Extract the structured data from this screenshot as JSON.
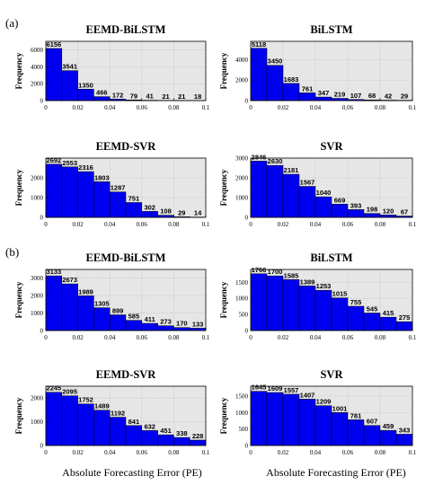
{
  "figure": {
    "section_labels": [
      "(a)",
      "(b)"
    ],
    "xlabel": "Absolute Forecasting Error (PE)"
  },
  "colors": {
    "bar": "#0000f0",
    "plot_bg": "#e6e6e6",
    "grid": "#bdbdbd"
  },
  "chart_data": [
    {
      "type": "bar",
      "section": "(a)",
      "title": "EEMD-BiLSTM",
      "ylabel": "Frequency",
      "xlim": [
        0,
        0.1
      ],
      "ylim": [
        0,
        7000
      ],
      "x_ticks": [
        "0",
        "0.02",
        "0.04",
        "0.06",
        "0.08",
        "0.1"
      ],
      "y_ticks": [
        "0",
        "2000",
        "4000",
        "6000"
      ],
      "y_tick_values": [
        0,
        2000,
        4000,
        6000
      ],
      "values": [
        6156,
        3541,
        1350,
        466,
        172,
        79,
        41,
        21,
        21,
        18
      ],
      "labels": [
        "6156",
        "3541",
        "1350",
        "466",
        "172",
        "79",
        "41",
        "21",
        "21",
        "18"
      ],
      "bin_width": 0.01,
      "grid": true
    },
    {
      "type": "bar",
      "section": "(a)",
      "title": "BiLSTM",
      "ylabel": "Frequency",
      "xlim": [
        0,
        0.1
      ],
      "ylim": [
        0,
        5800
      ],
      "x_ticks": [
        "0",
        "0.02",
        "0.04",
        "0.06",
        "0.08",
        "0.1"
      ],
      "y_ticks": [
        "0",
        "2000",
        "4000"
      ],
      "y_tick_values": [
        0,
        2000,
        4000
      ],
      "values": [
        5118,
        3450,
        1683,
        761,
        347,
        219,
        107,
        68,
        42,
        29
      ],
      "labels": [
        "5118",
        "3450",
        "1683",
        "761",
        "347",
        "219",
        "107",
        "68",
        "42",
        "29"
      ],
      "bin_width": 0.01,
      "grid": true
    },
    {
      "type": "bar",
      "section": "(a)",
      "title": "EEMD-SVR",
      "ylabel": "Frequency",
      "xlim": [
        0,
        0.1
      ],
      "ylim": [
        0,
        3000
      ],
      "x_ticks": [
        "0",
        "0.02",
        "0.04",
        "0.06",
        "0.08",
        "0.1"
      ],
      "y_ticks": [
        "0",
        "1000",
        "2000"
      ],
      "y_tick_values": [
        0,
        1000,
        2000
      ],
      "values": [
        2692,
        2553,
        2316,
        1803,
        1287,
        751,
        302,
        108,
        29,
        14
      ],
      "labels": [
        "2692",
        "2553",
        "2316",
        "1803",
        "1287",
        "751",
        "302",
        "108",
        "29",
        "14"
      ],
      "bin_width": 0.01,
      "grid": true
    },
    {
      "type": "bar",
      "section": "(a)",
      "title": "SVR",
      "ylabel": "Frequency",
      "xlim": [
        0,
        0.1
      ],
      "ylim": [
        0,
        3000
      ],
      "x_ticks": [
        "0",
        "0.02",
        "0.04",
        "0.06",
        "0.08",
        "0.1"
      ],
      "y_ticks": [
        "0",
        "1000",
        "2000",
        "3000"
      ],
      "y_tick_values": [
        0,
        1000,
        2000,
        3000
      ],
      "values": [
        2846,
        2630,
        2181,
        1567,
        1040,
        669,
        393,
        198,
        120,
        67
      ],
      "labels": [
        "2846",
        "2630",
        "2181",
        "1567",
        "1040",
        "669",
        "393",
        "198",
        "120",
        "67"
      ],
      "bin_width": 0.01,
      "grid": true
    },
    {
      "type": "bar",
      "section": "(b)",
      "title": "EEMD-BiLSTM",
      "ylabel": "Frequency",
      "xlim": [
        0,
        0.1
      ],
      "ylim": [
        0,
        3500
      ],
      "x_ticks": [
        "0",
        "0.02",
        "0.04",
        "0.06",
        "0.08",
        "0.1"
      ],
      "y_ticks": [
        "0",
        "1000",
        "2000",
        "3000"
      ],
      "y_tick_values": [
        0,
        1000,
        2000,
        3000
      ],
      "values": [
        3133,
        2673,
        1989,
        1305,
        899,
        585,
        411,
        273,
        170,
        133
      ],
      "labels": [
        "3133",
        "2673",
        "1989",
        "1305",
        "899",
        "585",
        "411",
        "273",
        "170",
        "133"
      ],
      "bin_width": 0.01,
      "grid": true
    },
    {
      "type": "bar",
      "section": "(b)",
      "title": "BiLSTM",
      "ylabel": "Frequency",
      "xlim": [
        0,
        0.1
      ],
      "ylim": [
        0,
        1900
      ],
      "x_ticks": [
        "0",
        "0.02",
        "0.04",
        "0.06",
        "0.08",
        "0.1"
      ],
      "y_ticks": [
        "0",
        "500",
        "1000",
        "1500"
      ],
      "y_tick_values": [
        0,
        500,
        1000,
        1500
      ],
      "values": [
        1766,
        1700,
        1585,
        1389,
        1253,
        1015,
        755,
        545,
        415,
        275
      ],
      "labels": [
        "1766",
        "1700",
        "1585",
        "1389",
        "1253",
        "1015",
        "755",
        "545",
        "415",
        "275"
      ],
      "bin_width": 0.01,
      "grid": true
    },
    {
      "type": "bar",
      "section": "(b)",
      "title": "EEMD-SVR",
      "ylabel": "Frequency",
      "xlim": [
        0,
        0.1
      ],
      "ylim": [
        0,
        2500
      ],
      "x_ticks": [
        "0",
        "0.02",
        "0.04",
        "0.06",
        "0.08",
        "0.1"
      ],
      "y_ticks": [
        "0",
        "1000",
        "2000"
      ],
      "y_tick_values": [
        0,
        1000,
        2000
      ],
      "values": [
        2245,
        2095,
        1752,
        1489,
        1192,
        841,
        632,
        451,
        338,
        228
      ],
      "labels": [
        "2245",
        "2095",
        "1752",
        "1489",
        "1192",
        "841",
        "632",
        "451",
        "338",
        "228"
      ],
      "bin_width": 0.01,
      "grid": true
    },
    {
      "type": "bar",
      "section": "(b)",
      "title": "SVR",
      "ylabel": "Frequency",
      "xlim": [
        0,
        0.1
      ],
      "ylim": [
        0,
        1800
      ],
      "x_ticks": [
        "0",
        "0.02",
        "0.04",
        "0.06",
        "0.08",
        "0.1"
      ],
      "y_ticks": [
        "0",
        "500",
        "1000",
        "1500"
      ],
      "y_tick_values": [
        0,
        500,
        1000,
        1500
      ],
      "values": [
        1645,
        1609,
        1557,
        1407,
        1209,
        1001,
        781,
        607,
        459,
        343
      ],
      "labels": [
        "1645",
        "1609",
        "1557",
        "1407",
        "1209",
        "1001",
        "781",
        "607",
        "459",
        "343"
      ],
      "bin_width": 0.01,
      "grid": true
    }
  ]
}
